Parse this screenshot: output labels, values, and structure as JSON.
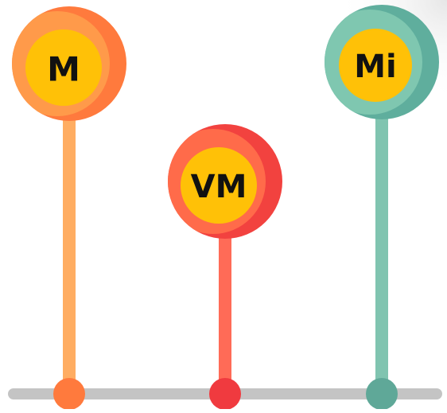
{
  "nodes": [
    {
      "label": "M"
    },
    {
      "label": "VM"
    },
    {
      "label": "Mi"
    }
  ]
}
